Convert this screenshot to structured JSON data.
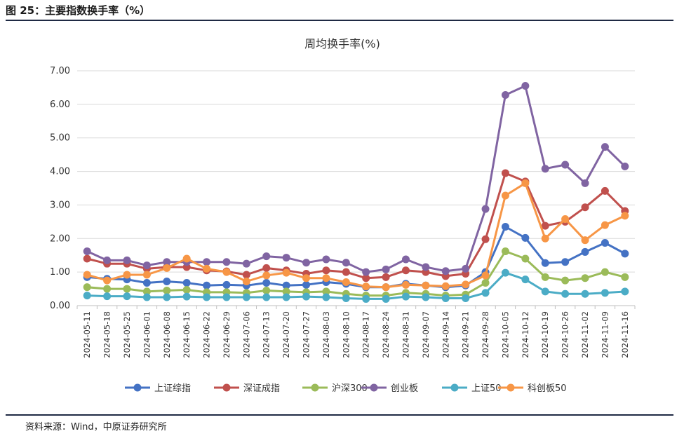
{
  "figure": {
    "label": "图 25：主要指数换手率（%）",
    "source": "资料来源：Wind，中原证券研究所"
  },
  "chart_data": {
    "type": "line",
    "title": "周均换手率(%)",
    "xlabel": "",
    "ylabel": "",
    "ylim": [
      0,
      7
    ],
    "yticks": [
      "0.00",
      "1.00",
      "2.00",
      "3.00",
      "4.00",
      "5.00",
      "6.00",
      "7.00"
    ],
    "grid": true,
    "legend": "bottom",
    "categories": [
      "2024-05-11",
      "2024-05-18",
      "2024-05-25",
      "2024-06-01",
      "2024-06-08",
      "2024-06-15",
      "2024-06-22",
      "2024-06-29",
      "2024-07-06",
      "2024-07-13",
      "2024-07-20",
      "2024-07-27",
      "2024-08-03",
      "2024-08-10",
      "2024-08-17",
      "2024-08-24",
      "2024-08-31",
      "2024-09-07",
      "2024-09-14",
      "2024-09-21",
      "2024-09-28",
      "2024-10-05",
      "2024-10-12",
      "2024-10-19",
      "2024-10-26",
      "2024-11-02",
      "2024-11-09",
      "2024-11-16"
    ],
    "series": [
      {
        "name": "上证综指",
        "color": "#4472c4",
        "values": [
          0.85,
          0.8,
          0.78,
          0.68,
          0.72,
          0.68,
          0.6,
          0.62,
          0.6,
          0.68,
          0.6,
          0.62,
          0.7,
          0.65,
          0.55,
          0.55,
          0.65,
          0.6,
          0.55,
          0.6,
          1.0,
          2.35,
          2.02,
          1.27,
          1.3,
          1.6,
          1.87,
          1.55
        ]
      },
      {
        "name": "深证成指",
        "color": "#c0504d",
        "values": [
          1.4,
          1.25,
          1.25,
          1.1,
          1.15,
          1.15,
          1.05,
          1.02,
          0.92,
          1.12,
          1.05,
          0.95,
          1.05,
          1.0,
          0.82,
          0.85,
          1.05,
          1.0,
          0.88,
          0.95,
          1.98,
          3.95,
          3.7,
          2.38,
          2.5,
          2.93,
          3.42,
          2.82
        ]
      },
      {
        "name": "沪深300",
        "color": "#9bbb59",
        "values": [
          0.55,
          0.5,
          0.5,
          0.42,
          0.45,
          0.47,
          0.4,
          0.4,
          0.38,
          0.45,
          0.42,
          0.4,
          0.42,
          0.35,
          0.3,
          0.3,
          0.38,
          0.35,
          0.3,
          0.33,
          0.68,
          1.62,
          1.4,
          0.85,
          0.75,
          0.82,
          1.0,
          0.85
        ]
      },
      {
        "name": "创业板",
        "color": "#8064a2",
        "values": [
          1.62,
          1.35,
          1.35,
          1.2,
          1.3,
          1.3,
          1.3,
          1.3,
          1.25,
          1.47,
          1.43,
          1.28,
          1.38,
          1.28,
          1.0,
          1.08,
          1.38,
          1.15,
          1.03,
          1.1,
          2.88,
          6.28,
          6.55,
          4.08,
          4.2,
          3.65,
          4.73,
          4.15
        ]
      },
      {
        "name": "上证50",
        "color": "#4bacc6",
        "values": [
          0.3,
          0.28,
          0.28,
          0.25,
          0.25,
          0.27,
          0.25,
          0.25,
          0.25,
          0.25,
          0.25,
          0.27,
          0.25,
          0.22,
          0.2,
          0.2,
          0.27,
          0.25,
          0.22,
          0.22,
          0.38,
          0.98,
          0.78,
          0.42,
          0.35,
          0.35,
          0.38,
          0.42
        ]
      },
      {
        "name": "科创板50",
        "color": "#f79646",
        "values": [
          0.92,
          0.75,
          0.92,
          0.92,
          1.12,
          1.4,
          1.1,
          1.0,
          0.72,
          0.9,
          0.98,
          0.82,
          0.82,
          0.7,
          0.57,
          0.55,
          0.62,
          0.6,
          0.58,
          0.63,
          0.9,
          3.28,
          3.65,
          2.0,
          2.58,
          1.95,
          2.4,
          2.68
        ]
      }
    ]
  }
}
